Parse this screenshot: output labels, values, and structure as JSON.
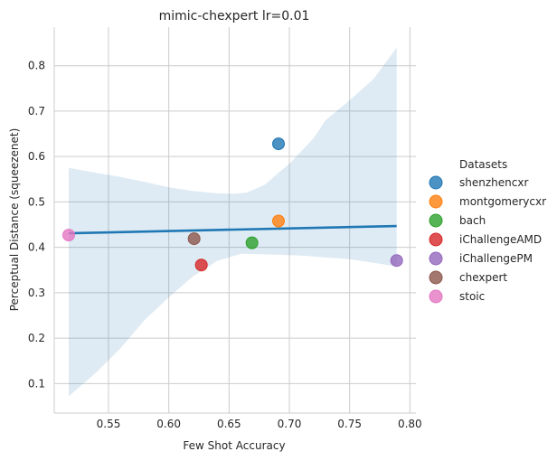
{
  "chart_data": {
    "type": "scatter",
    "title": "mimic-chexpert lr=0.01",
    "xlabel": "Few Shot Accuracy",
    "ylabel": "Perceptual Distance (squeezenet)",
    "xlim": [
      0.505,
      0.805
    ],
    "ylim": [
      0.035,
      0.885
    ],
    "xticks": [
      0.55,
      0.6,
      0.65,
      0.7,
      0.75,
      0.8
    ],
    "xtick_labels": [
      "0.55",
      "0.60",
      "0.65",
      "0.70",
      "0.75",
      "0.80"
    ],
    "yticks": [
      0.1,
      0.2,
      0.3,
      0.4,
      0.5,
      0.6,
      0.7,
      0.8
    ],
    "ytick_labels": [
      "0.1",
      "0.2",
      "0.3",
      "0.4",
      "0.5",
      "0.6",
      "0.7",
      "0.8"
    ],
    "grid": true,
    "legend": {
      "title": "Datasets",
      "placement": "right"
    },
    "series": [
      {
        "name": "shenzhencxr",
        "color": "#1f77b4",
        "x": 0.691,
        "y": 0.628
      },
      {
        "name": "montgomerycxr",
        "color": "#ff7f0e",
        "x": 0.691,
        "y": 0.458
      },
      {
        "name": "bach",
        "color": "#2ca02c",
        "x": 0.669,
        "y": 0.41
      },
      {
        "name": "iChallengeAMD",
        "color": "#d62728",
        "x": 0.627,
        "y": 0.361
      },
      {
        "name": "iChallengePM",
        "color": "#9467bd",
        "x": 0.789,
        "y": 0.371
      },
      {
        "name": "chexpert",
        "color": "#8c564b",
        "x": 0.621,
        "y": 0.419
      },
      {
        "name": "stoic",
        "color": "#e377c2",
        "x": 0.517,
        "y": 0.427
      }
    ],
    "regression": {
      "color": "#1f77b4",
      "line": [
        [
          0.517,
          0.431
        ],
        [
          0.789,
          0.447
        ]
      ],
      "ci_upper": [
        [
          0.517,
          0.575
        ],
        [
          0.54,
          0.564
        ],
        [
          0.56,
          0.555
        ],
        [
          0.58,
          0.544
        ],
        [
          0.6,
          0.532
        ],
        [
          0.62,
          0.524
        ],
        [
          0.64,
          0.519
        ],
        [
          0.655,
          0.518
        ],
        [
          0.665,
          0.521
        ],
        [
          0.68,
          0.538
        ],
        [
          0.69,
          0.562
        ],
        [
          0.7,
          0.584
        ],
        [
          0.71,
          0.612
        ],
        [
          0.72,
          0.64
        ],
        [
          0.73,
          0.68
        ],
        [
          0.75,
          0.724
        ],
        [
          0.77,
          0.771
        ],
        [
          0.789,
          0.84
        ]
      ],
      "ci_lower": [
        [
          0.517,
          0.072
        ],
        [
          0.54,
          0.125
        ],
        [
          0.56,
          0.178
        ],
        [
          0.58,
          0.24
        ],
        [
          0.6,
          0.29
        ],
        [
          0.62,
          0.336
        ],
        [
          0.64,
          0.37
        ],
        [
          0.66,
          0.386
        ],
        [
          0.69,
          0.384
        ],
        [
          0.71,
          0.382
        ],
        [
          0.73,
          0.378
        ],
        [
          0.75,
          0.374
        ],
        [
          0.77,
          0.366
        ],
        [
          0.789,
          0.358
        ]
      ]
    }
  }
}
